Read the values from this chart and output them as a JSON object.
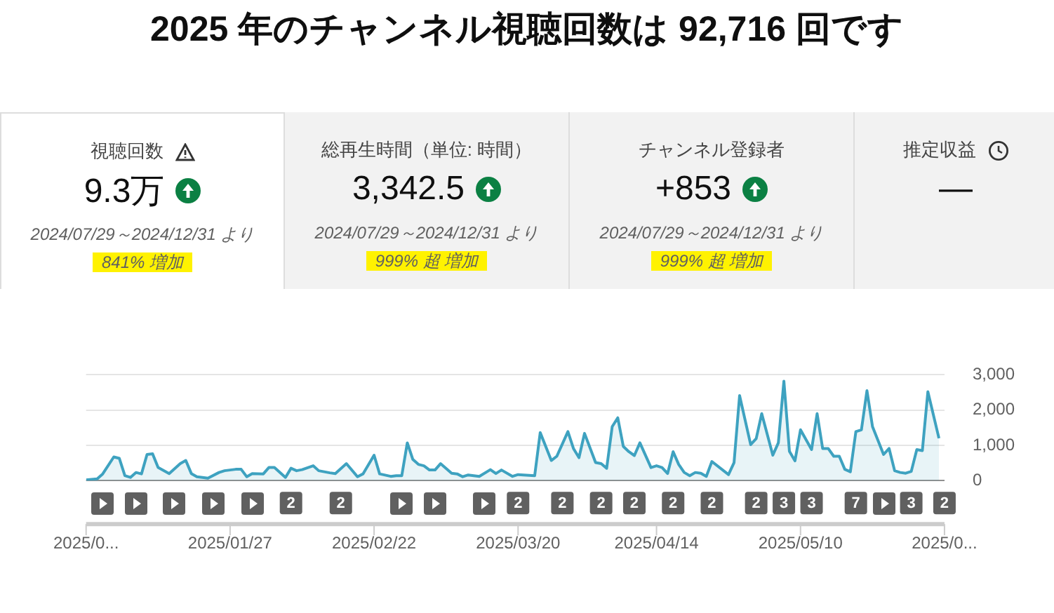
{
  "chart_data": {
    "type": "area",
    "title": "2025 年のチャンネル視聴回数は 92,716 回です",
    "annotations": [
      "視聴回数",
      "9.3万",
      "2024/07/29～2024/12/31 より",
      "841% 増加",
      "総再生時間（単位: 時間）",
      "3,342.5",
      "2024/07/29～2024/12/31 より",
      "999% 超 増加",
      "チャンネル登録者",
      "+853",
      "2024/07/29～2024/12/31 より",
      "999% 超 増加",
      "推定収益",
      "—",
      "2",
      "2",
      "2",
      "2",
      "2",
      "2",
      "2",
      "2",
      "2",
      "3",
      "3",
      "7",
      "3",
      "2"
    ],
    "x": [
      "2025-01-01",
      "2025-01-03",
      "2025-01-04",
      "2025-01-06",
      "2025-01-07",
      "2025-01-08",
      "2025-01-09",
      "2025-01-10",
      "2025-01-11",
      "2025-01-12",
      "2025-01-13",
      "2025-01-14",
      "2025-01-16",
      "2025-01-18",
      "2025-01-19",
      "2025-01-20",
      "2025-01-21",
      "2025-01-23",
      "2025-01-25",
      "2025-01-26",
      "2025-01-28",
      "2025-01-29",
      "2025-01-30",
      "2025-01-31",
      "2025-02-02",
      "2025-02-03",
      "2025-02-04",
      "2025-02-06",
      "2025-02-07",
      "2025-02-08",
      "2025-02-09",
      "2025-02-11",
      "2025-02-12",
      "2025-02-14",
      "2025-02-15",
      "2025-02-17",
      "2025-02-19",
      "2025-02-20",
      "2025-02-22",
      "2025-02-23",
      "2025-02-25",
      "2025-02-26",
      "2025-02-27",
      "2025-02-28",
      "2025-03-01",
      "2025-03-02",
      "2025-03-03",
      "2025-03-04",
      "2025-03-05",
      "2025-03-06",
      "2025-03-08",
      "2025-03-09",
      "2025-03-10",
      "2025-03-11",
      "2025-03-13",
      "2025-03-15",
      "2025-03-16",
      "2025-03-17",
      "2025-03-19",
      "2025-03-20",
      "2025-03-23",
      "2025-03-24",
      "2025-03-26",
      "2025-03-27",
      "2025-03-29",
      "2025-03-30",
      "2025-03-31",
      "2025-04-01",
      "2025-04-03",
      "2025-04-04",
      "2025-04-05",
      "2025-04-06",
      "2025-04-07",
      "2025-04-08",
      "2025-04-09",
      "2025-04-10",
      "2025-04-11",
      "2025-04-13",
      "2025-04-14",
      "2025-04-15",
      "2025-04-16",
      "2025-04-17",
      "2025-04-18",
      "2025-04-19",
      "2025-04-20",
      "2025-04-21",
      "2025-04-22",
      "2025-04-23",
      "2025-04-24",
      "2025-04-27",
      "2025-04-28",
      "2025-04-29",
      "2025-05-01",
      "2025-05-02",
      "2025-05-03",
      "2025-05-05",
      "2025-05-06",
      "2025-05-07",
      "2025-05-08",
      "2025-05-09",
      "2025-05-10",
      "2025-05-12",
      "2025-05-13",
      "2025-05-14",
      "2025-05-15",
      "2025-05-16",
      "2025-05-17",
      "2025-05-18",
      "2025-05-19",
      "2025-05-20",
      "2025-05-21",
      "2025-05-22",
      "2025-05-23",
      "2025-05-25",
      "2025-05-26",
      "2025-05-27",
      "2025-05-28",
      "2025-05-29",
      "2025-05-30",
      "2025-05-31",
      "2025-06-01",
      "2025-06-02",
      "2025-06-04"
    ],
    "series": [
      {
        "color": "#3ea2c0",
        "values": [
          20,
          50,
          190,
          670,
          630,
          140,
          90,
          230,
          190,
          740,
          760,
          370,
          200,
          480,
          570,
          200,
          110,
          70,
          230,
          280,
          320,
          320,
          110,
          200,
          190,
          370,
          370,
          90,
          350,
          280,
          310,
          420,
          280,
          220,
          200,
          480,
          110,
          190,
          720,
          190,
          120,
          140,
          140,
          1070,
          600,
          460,
          420,
          300,
          300,
          480,
          210,
          190,
          110,
          160,
          120,
          310,
          200,
          300,
          120,
          170,
          140,
          1360,
          570,
          690,
          1390,
          910,
          650,
          1340,
          510,
          480,
          350,
          1530,
          1780,
          970,
          820,
          710,
          1070,
          370,
          420,
          370,
          200,
          820,
          460,
          230,
          140,
          230,
          210,
          120,
          540,
          170,
          510,
          2410,
          1020,
          1190,
          1900,
          720,
          1070,
          2820,
          830,
          560,
          1440,
          880,
          1900,
          910,
          910,
          690,
          690,
          320,
          250,
          1390,
          1440,
          2550,
          1530,
          740,
          910,
          280,
          230,
          210,
          260,
          880,
          850,
          2520,
          1200
        ]
      }
    ],
    "xlim": [
      "2025-01-01",
      "2025-06-05"
    ],
    "xticks": [
      {
        "value": "2025-01-01",
        "label": "2025/0..."
      },
      {
        "value": "2025-01-27",
        "label": "2025/01/27"
      },
      {
        "value": "2025-02-22",
        "label": "2025/02/22"
      },
      {
        "value": "2025-03-20",
        "label": "2025/03/20"
      },
      {
        "value": "2025-04-14",
        "label": "2025/04/14"
      },
      {
        "value": "2025-05-10",
        "label": "2025/05/10"
      },
      {
        "value": "2025-06-05",
        "label": "2025/0..."
      }
    ],
    "ylim": [
      0,
      3000
    ],
    "yticks": [
      0,
      {
        "value": 1000,
        "label": "1,000"
      },
      {
        "value": 2000,
        "label": "2,000"
      },
      {
        "value": 3000,
        "label": "3,000"
      }
    ],
    "grid": "y",
    "legend": false
  }
}
